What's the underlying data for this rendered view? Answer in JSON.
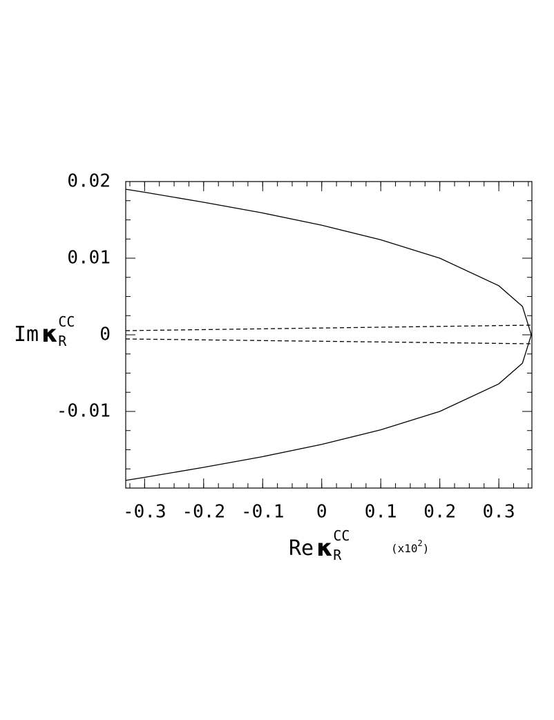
{
  "chart_data": {
    "type": "line",
    "y_label": {
      "text": "Im",
      "symbol": "κ",
      "sub": "R",
      "sup": "CC"
    },
    "x_label": {
      "text": "Re",
      "symbol": "κ",
      "sub": "R",
      "sup": "CC"
    },
    "x_scale_note": {
      "text": "(x10",
      "sup": "2",
      "close": ")"
    },
    "xlim": [
      -0.332,
      0.356
    ],
    "ylim": [
      -0.02,
      0.02
    ],
    "xticks": [
      -0.3,
      -0.2,
      -0.1,
      0,
      0.1,
      0.2,
      0.3
    ],
    "yticks": [
      0.02,
      0.01,
      0,
      -0.01
    ],
    "series": [
      {
        "color": "#000000",
        "dashed": false,
        "x": [
          -0.332,
          -0.3,
          -0.2,
          -0.1,
          0,
          0.1,
          0.2,
          0.3,
          0.34,
          0.355
        ],
        "values": [
          0.019,
          0.0186,
          0.0173,
          0.0159,
          0.0143,
          0.0124,
          0.01,
          0.0064,
          0.0037,
          0
        ]
      },
      {
        "color": "#000000",
        "dashed": false,
        "x": [
          -0.332,
          -0.3,
          -0.2,
          -0.1,
          0,
          0.1,
          0.2,
          0.3,
          0.34,
          0.355
        ],
        "values": [
          -0.019,
          -0.0186,
          -0.0173,
          -0.0159,
          -0.0143,
          -0.0124,
          -0.01,
          -0.0064,
          -0.0037,
          0
        ]
      },
      {
        "color": "#000000",
        "dashed": true,
        "x": [
          -0.332,
          0.355
        ],
        "values": [
          0.00054,
          0.00126
        ]
      },
      {
        "color": "#000000",
        "dashed": true,
        "x": [
          -0.332,
          0.355
        ],
        "values": [
          -0.00054,
          -0.00117
        ]
      }
    ]
  }
}
